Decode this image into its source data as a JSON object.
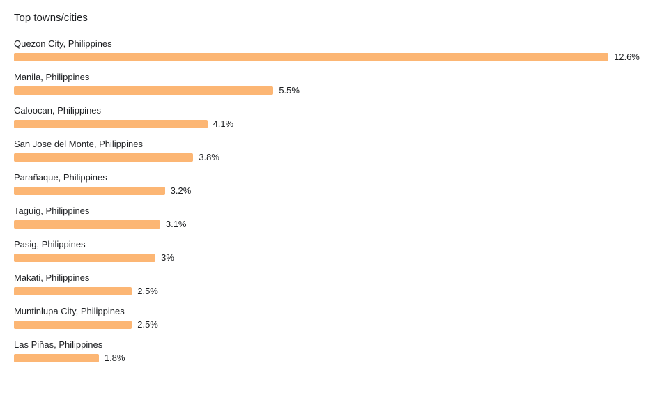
{
  "header": {
    "title": "Top towns/cities"
  },
  "colors": {
    "bar": "#fcb674"
  },
  "chart_data": {
    "type": "bar",
    "orientation": "horizontal",
    "title": "Top towns/cities",
    "xlabel": "",
    "ylabel": "",
    "grid": false,
    "legend": "none",
    "categories": [
      "Quezon City, Philippines",
      "Manila, Philippines",
      "Caloocan, Philippines",
      "San Jose del Monte, Philippines",
      "Parañaque, Philippines",
      "Taguig, Philippines",
      "Pasig, Philippines",
      "Makati, Philippines",
      "Muntinlupa City, Philippines",
      "Las Piñas, Philippines"
    ],
    "values": [
      12.6,
      5.5,
      4.1,
      3.8,
      3.2,
      3.1,
      3.0,
      2.5,
      2.5,
      1.8
    ],
    "value_labels": [
      "12.6%",
      "5.5%",
      "4.1%",
      "3.8%",
      "3.2%",
      "3.1%",
      "3%",
      "2.5%",
      "2.5%",
      "1.8%"
    ],
    "xlim": [
      0,
      12.6
    ]
  }
}
